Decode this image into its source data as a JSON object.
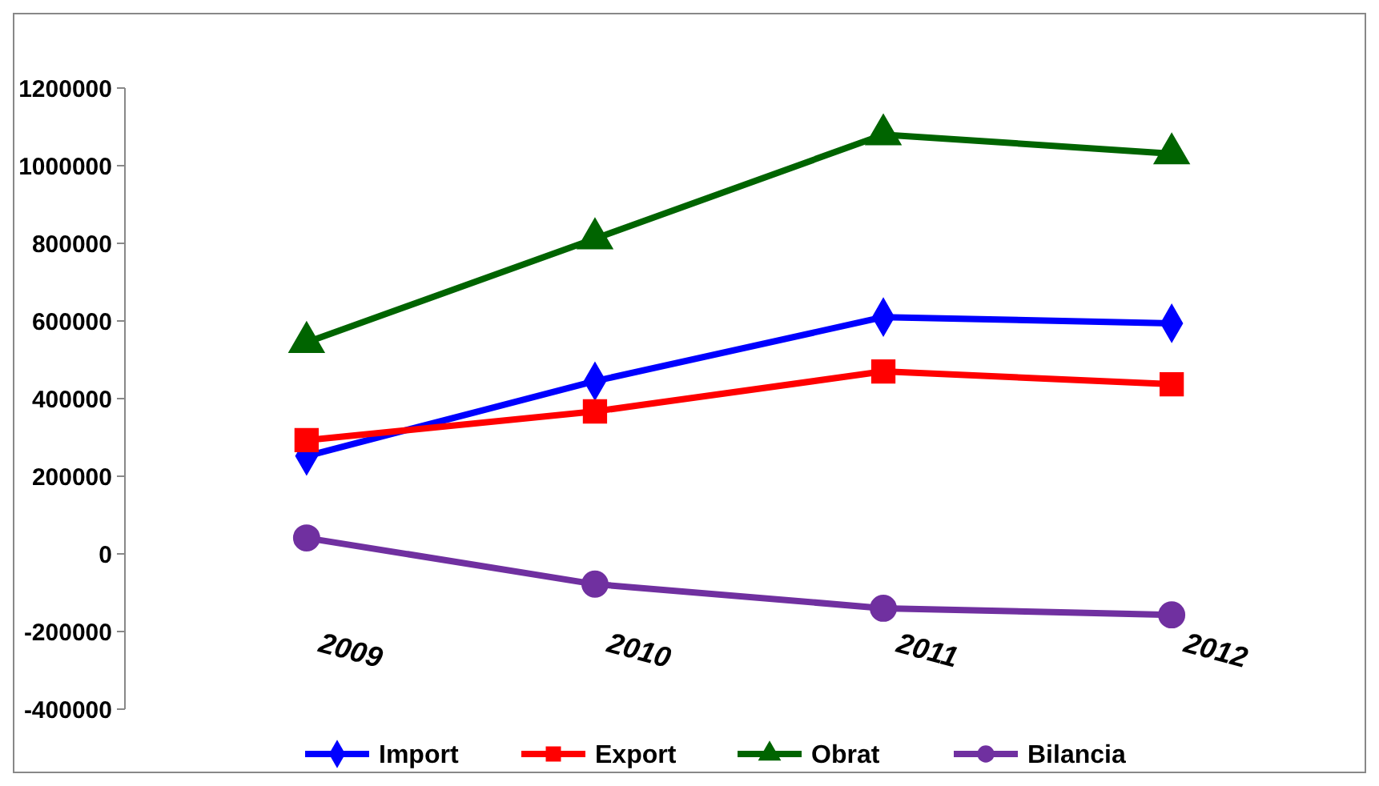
{
  "chart_data": {
    "type": "line",
    "categories": [
      "2009",
      "2010",
      "2011",
      "2012"
    ],
    "ylim": [
      -400000,
      1200000
    ],
    "yticks": [
      -400000,
      -200000,
      0,
      200000,
      400000,
      600000,
      800000,
      1000000,
      1200000
    ],
    "grid": false,
    "legend": "bottom",
    "series": [
      {
        "name": "Import",
        "color": "#0000ff",
        "marker": "diamond",
        "values": [
          252000,
          445000,
          610000,
          594000
        ]
      },
      {
        "name": "Export",
        "color": "#ff0000",
        "marker": "square",
        "values": [
          293000,
          367000,
          470000,
          437000
        ]
      },
      {
        "name": "Obrat",
        "color": "#006400",
        "marker": "triangle",
        "values": [
          545000,
          812000,
          1080000,
          1031000
        ]
      },
      {
        "name": "Bilancia",
        "color": "#7030a0",
        "marker": "circle",
        "values": [
          41000,
          -78000,
          -140000,
          -157000
        ]
      }
    ]
  }
}
